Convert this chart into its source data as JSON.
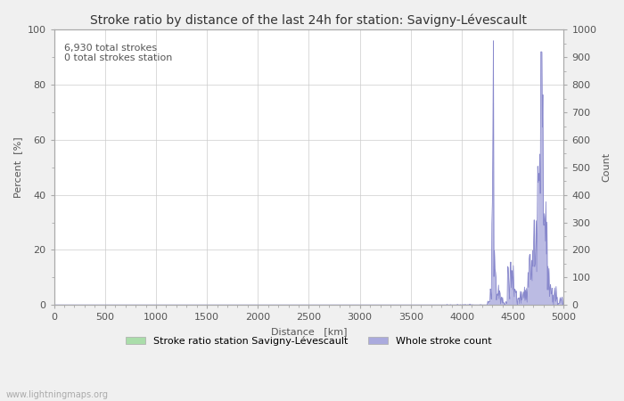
{
  "title": "Stroke ratio by distance of the last 24h for station: Savigny-Lévescault",
  "xlabel": "Distance   [km]",
  "ylabel_left": "Percent  [%]",
  "ylabel_right": "Count",
  "annotation_line1": "6,930 total strokes",
  "annotation_line2": "0 total strokes station",
  "watermark": "www.lightningmaps.org",
  "xlim": [
    0,
    5000
  ],
  "ylim_left": [
    0,
    100
  ],
  "ylim_right": [
    0,
    1000
  ],
  "x_ticks": [
    0,
    500,
    1000,
    1500,
    2000,
    2500,
    3000,
    3500,
    4000,
    4500,
    5000
  ],
  "y_ticks_left": [
    0,
    20,
    40,
    60,
    80,
    100
  ],
  "y_ticks_right": [
    0,
    100,
    200,
    300,
    400,
    500,
    600,
    700,
    800,
    900,
    1000
  ],
  "bg_color": "#f0f0f0",
  "plot_bg_color": "#ffffff",
  "line_color": "#8888cc",
  "fill_color": "#aaaadd",
  "legend_label_ratio": "Stroke ratio station Savigny-Lévescault",
  "legend_label_count": "Whole stroke count",
  "legend_color_ratio": "#aaddaa",
  "legend_color_count": "#aaaadd",
  "title_fontsize": 10,
  "axis_fontsize": 8,
  "tick_fontsize": 8,
  "annotation_fontsize": 8
}
